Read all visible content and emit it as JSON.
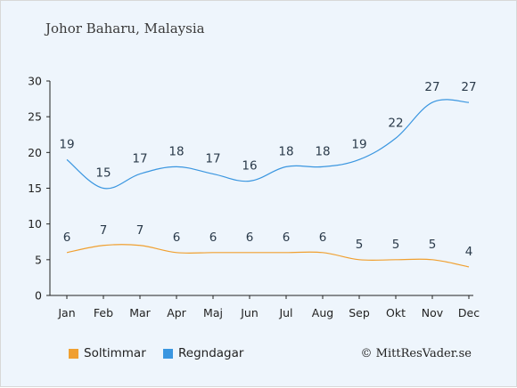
{
  "chart_data": {
    "type": "line",
    "title": "Johor Baharu, Malaysia",
    "categories": [
      "Jan",
      "Feb",
      "Mar",
      "Apr",
      "Maj",
      "Jun",
      "Jul",
      "Aug",
      "Sep",
      "Okt",
      "Nov",
      "Dec"
    ],
    "series": [
      {
        "name": "Soltimmar",
        "color": "#f0a030",
        "values": [
          6,
          7,
          7,
          6,
          6,
          6,
          6,
          6,
          5,
          5,
          5,
          4
        ]
      },
      {
        "name": "Regndagar",
        "color": "#3a96e0",
        "values": [
          19,
          15,
          17,
          18,
          17,
          16,
          18,
          18,
          19,
          22,
          27,
          27
        ]
      }
    ],
    "yticks": [
      0,
      5,
      10,
      15,
      20,
      25,
      30
    ],
    "ylim": [
      0,
      30
    ],
    "grid": false,
    "legend_position": "bottom-left"
  },
  "credit": "© MittResVader.se"
}
